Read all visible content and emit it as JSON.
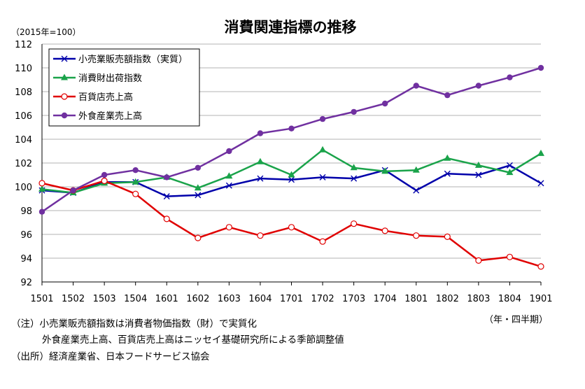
{
  "chart_data": {
    "type": "line",
    "title": "消費関連指標の推移",
    "y_unit_label": "（2015年=100）",
    "x_unit_label": "（年・四半期）",
    "ylim": [
      92,
      112
    ],
    "y_ticks": [
      92,
      94,
      96,
      98,
      100,
      102,
      104,
      106,
      108,
      110,
      112
    ],
    "grid": true,
    "legend_position": "top-left",
    "categories": [
      "1501",
      "1502",
      "1503",
      "1504",
      "1601",
      "1602",
      "1603",
      "1604",
      "1701",
      "1702",
      "1703",
      "1704",
      "1801",
      "1802",
      "1803",
      "1804",
      "1901"
    ],
    "series": [
      {
        "name": "小売業販売額指数（実質）",
        "color": "#0000aa",
        "marker": "x",
        "values": [
          99.7,
          99.5,
          100.4,
          100.4,
          99.2,
          99.3,
          100.1,
          100.7,
          100.6,
          100.8,
          100.7,
          101.4,
          99.7,
          101.1,
          101.0,
          101.8,
          100.3
        ]
      },
      {
        "name": "消費財出荷指数",
        "color": "#1aa34a",
        "marker": "triangle",
        "values": [
          99.8,
          99.5,
          100.3,
          100.4,
          100.8,
          99.9,
          100.9,
          102.1,
          101.0,
          103.1,
          101.6,
          101.3,
          101.4,
          102.4,
          101.8,
          101.2,
          102.8
        ]
      },
      {
        "name": "百貨店売上高",
        "color": "#e00000",
        "marker": "circle-open",
        "values": [
          100.3,
          99.7,
          100.5,
          99.4,
          97.3,
          95.7,
          96.6,
          95.9,
          96.6,
          95.4,
          96.9,
          96.3,
          95.9,
          95.8,
          93.8,
          94.1,
          93.3
        ]
      },
      {
        "name": "外食産業売上高",
        "color": "#7030a0",
        "marker": "circle",
        "values": [
          97.9,
          99.7,
          101.0,
          101.4,
          100.8,
          101.6,
          103.0,
          104.5,
          104.9,
          105.7,
          106.3,
          107.0,
          108.5,
          107.7,
          108.5,
          109.2,
          110.0
        ]
      }
    ]
  },
  "notes": {
    "line1": "（注）小売業販売額指数は消費者物価指数（財）で実質化",
    "line2": "外食産業売上高、百貨店売上高はニッセイ基礎研究所による季節調整値",
    "line3": "（出所）経済産業省、日本フードサービス協会"
  }
}
